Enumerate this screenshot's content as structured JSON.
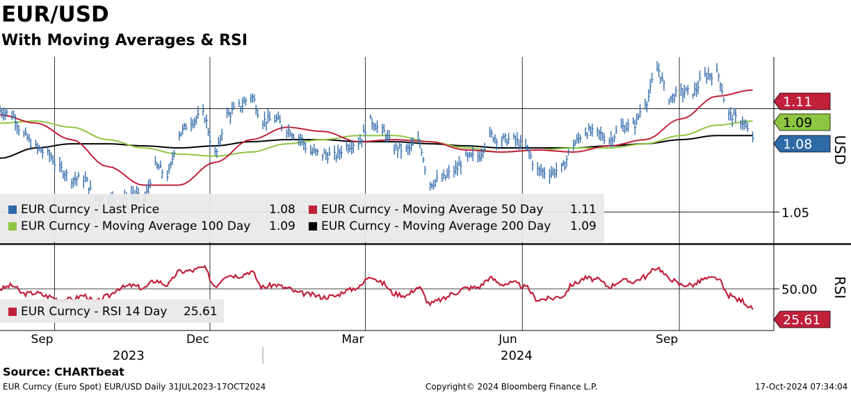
{
  "header": {
    "title": "EUR/USD",
    "subtitle": "With Moving Averages & RSI"
  },
  "legend_price": [
    {
      "label": "EUR Curncy - Last Price",
      "value": "1.08",
      "color": "#2f6aa8"
    },
    {
      "label": "EUR Curncy - Moving Average 50 Day",
      "value": "1.11",
      "color": "#c0203a"
    },
    {
      "label": "EUR Curncy - Moving Average 100 Day",
      "value": "1.09",
      "color": "#8ec641"
    },
    {
      "label": "EUR Curncy - Moving Average 200 Day",
      "value": "1.09",
      "color": "#000000"
    }
  ],
  "legend_rsi": {
    "label": "EUR Curncy - RSI 14 Day",
    "value": "25.61",
    "color": "#c0203a"
  },
  "right_axis": {
    "price_label": "USD",
    "rsi_label": "RSI",
    "price_ticks": [
      "1.05"
    ],
    "rsi_ticks": [
      "50.00"
    ],
    "tags": [
      {
        "text": "1.11",
        "color": "#c0203a",
        "text_color": "#ffffff"
      },
      {
        "text": "1.09",
        "color": "#8ec641",
        "text_color": "#000000"
      },
      {
        "text": "1.08",
        "color": "#2f6aa8",
        "text_color": "#ffffff"
      },
      {
        "text": "25.61",
        "color": "#c0203a",
        "text_color": "#ffffff"
      }
    ]
  },
  "x_axis": {
    "months": [
      "Sep",
      "Dec",
      "Mar",
      "Jun",
      "Sep"
    ],
    "years": [
      "2023",
      "2024"
    ]
  },
  "footer": {
    "source": "Source: CHARTbeat",
    "left": "EUR Curncy (Euro Spot) EUR/USD  Daily 31JUL2023-17OCT2024",
    "center": "Copyright© 2024 Bloomberg Finance L.P.",
    "right": "17-Oct-2024 07:34:04"
  },
  "chart_data": [
    {
      "type": "line",
      "title": "EUR/USD",
      "subtitle": "With Moving Averages & RSI",
      "ylabel": "USD",
      "ylim": [
        1.035,
        1.125
      ],
      "x_range": [
        "2023-07-31",
        "2024-10-17"
      ],
      "series": [
        {
          "name": "EUR Curncy - Last Price",
          "style": "bar-ohlc",
          "points": [
            [
              "2023-07-31",
              1.099
            ],
            [
              "2023-08-07",
              1.097
            ],
            [
              "2023-08-14",
              1.087
            ],
            [
              "2023-08-21",
              1.081
            ],
            [
              "2023-08-28",
              1.078
            ],
            [
              "2023-09-04",
              1.071
            ],
            [
              "2023-09-11",
              1.066
            ],
            [
              "2023-09-18",
              1.066
            ],
            [
              "2023-09-25",
              1.057
            ],
            [
              "2023-10-02",
              1.057
            ],
            [
              "2023-10-09",
              1.055
            ],
            [
              "2023-10-16",
              1.059
            ],
            [
              "2023-10-23",
              1.056
            ],
            [
              "2023-10-30",
              1.072
            ],
            [
              "2023-11-06",
              1.068
            ],
            [
              "2023-11-13",
              1.088
            ],
            [
              "2023-11-20",
              1.094
            ],
            [
              "2023-11-27",
              1.097
            ],
            [
              "2023-12-04",
              1.078
            ],
            [
              "2023-12-11",
              1.097
            ],
            [
              "2023-12-18",
              1.101
            ],
            [
              "2023-12-25",
              1.106
            ],
            [
              "2024-01-01",
              1.094
            ],
            [
              "2024-01-08",
              1.095
            ],
            [
              "2024-01-15",
              1.09
            ],
            [
              "2024-01-22",
              1.086
            ],
            [
              "2024-01-29",
              1.079
            ],
            [
              "2024-02-05",
              1.078
            ],
            [
              "2024-02-12",
              1.077
            ],
            [
              "2024-02-19",
              1.082
            ],
            [
              "2024-02-26",
              1.084
            ],
            [
              "2024-03-04",
              1.094
            ],
            [
              "2024-03-11",
              1.089
            ],
            [
              "2024-03-18",
              1.081
            ],
            [
              "2024-03-25",
              1.08
            ],
            [
              "2024-04-01",
              1.084
            ],
            [
              "2024-04-08",
              1.064
            ],
            [
              "2024-04-15",
              1.066
            ],
            [
              "2024-04-22",
              1.07
            ],
            [
              "2024-04-29",
              1.076
            ],
            [
              "2024-05-06",
              1.077
            ],
            [
              "2024-05-13",
              1.087
            ],
            [
              "2024-05-20",
              1.085
            ],
            [
              "2024-05-27",
              1.085
            ],
            [
              "2024-06-03",
              1.081
            ],
            [
              "2024-06-10",
              1.07
            ],
            [
              "2024-06-17",
              1.069
            ],
            [
              "2024-06-24",
              1.071
            ],
            [
              "2024-07-01",
              1.083
            ],
            [
              "2024-07-08",
              1.089
            ],
            [
              "2024-07-15",
              1.088
            ],
            [
              "2024-07-22",
              1.085
            ],
            [
              "2024-07-29",
              1.091
            ],
            [
              "2024-08-05",
              1.092
            ],
            [
              "2024-08-12",
              1.103
            ],
            [
              "2024-08-19",
              1.119
            ],
            [
              "2024-08-26",
              1.105
            ],
            [
              "2024-09-02",
              1.108
            ],
            [
              "2024-09-09",
              1.108
            ],
            [
              "2024-09-16",
              1.116
            ],
            [
              "2024-09-23",
              1.117
            ],
            [
              "2024-09-30",
              1.097
            ],
            [
              "2024-10-07",
              1.094
            ],
            [
              "2024-10-14",
              1.086
            ]
          ]
        },
        {
          "name": "EUR Curncy - Moving Average 50 Day",
          "points": [
            [
              "2023-07-31",
              1.097
            ],
            [
              "2023-08-21",
              1.093
            ],
            [
              "2023-09-11",
              1.085
            ],
            [
              "2023-10-02",
              1.072
            ],
            [
              "2023-10-23",
              1.063
            ],
            [
              "2023-11-13",
              1.063
            ],
            [
              "2023-12-04",
              1.074
            ],
            [
              "2023-12-25",
              1.085
            ],
            [
              "2024-01-15",
              1.091
            ],
            [
              "2024-02-05",
              1.089
            ],
            [
              "2024-02-26",
              1.084
            ],
            [
              "2024-03-18",
              1.085
            ],
            [
              "2024-04-08",
              1.084
            ],
            [
              "2024-04-29",
              1.08
            ],
            [
              "2024-05-20",
              1.079
            ],
            [
              "2024-06-10",
              1.08
            ],
            [
              "2024-07-01",
              1.079
            ],
            [
              "2024-07-22",
              1.082
            ],
            [
              "2024-08-12",
              1.085
            ],
            [
              "2024-09-02",
              1.095
            ],
            [
              "2024-09-23",
              1.106
            ],
            [
              "2024-10-14",
              1.109
            ]
          ]
        },
        {
          "name": "EUR Curncy - Moving Average 100 Day",
          "points": [
            [
              "2023-07-31",
              1.093
            ],
            [
              "2023-08-21",
              1.094
            ],
            [
              "2023-09-11",
              1.091
            ],
            [
              "2023-10-02",
              1.085
            ],
            [
              "2023-10-23",
              1.081
            ],
            [
              "2023-11-13",
              1.078
            ],
            [
              "2023-12-04",
              1.077
            ],
            [
              "2023-12-25",
              1.079
            ],
            [
              "2024-01-15",
              1.083
            ],
            [
              "2024-02-05",
              1.085
            ],
            [
              "2024-02-26",
              1.087
            ],
            [
              "2024-03-18",
              1.087
            ],
            [
              "2024-04-08",
              1.084
            ],
            [
              "2024-04-29",
              1.081
            ],
            [
              "2024-05-20",
              1.079
            ],
            [
              "2024-06-10",
              1.08
            ],
            [
              "2024-07-01",
              1.081
            ],
            [
              "2024-07-22",
              1.081
            ],
            [
              "2024-08-12",
              1.083
            ],
            [
              "2024-09-02",
              1.087
            ],
            [
              "2024-09-23",
              1.092
            ],
            [
              "2024-10-14",
              1.094
            ]
          ]
        },
        {
          "name": "EUR Curncy - Moving Average 200 Day",
          "points": [
            [
              "2023-07-31",
              1.076
            ],
            [
              "2023-08-21",
              1.081
            ],
            [
              "2023-09-11",
              1.083
            ],
            [
              "2023-10-02",
              1.083
            ],
            [
              "2023-10-23",
              1.082
            ],
            [
              "2023-11-13",
              1.081
            ],
            [
              "2023-12-04",
              1.082
            ],
            [
              "2023-12-25",
              1.084
            ],
            [
              "2024-01-15",
              1.085
            ],
            [
              "2024-02-05",
              1.085
            ],
            [
              "2024-02-26",
              1.084
            ],
            [
              "2024-03-18",
              1.084
            ],
            [
              "2024-04-08",
              1.083
            ],
            [
              "2024-04-29",
              1.082
            ],
            [
              "2024-05-20",
              1.081
            ],
            [
              "2024-06-10",
              1.081
            ],
            [
              "2024-07-01",
              1.081
            ],
            [
              "2024-07-22",
              1.082
            ],
            [
              "2024-08-12",
              1.083
            ],
            [
              "2024-09-02",
              1.085
            ],
            [
              "2024-09-23",
              1.087
            ],
            [
              "2024-10-14",
              1.087
            ]
          ]
        }
      ]
    },
    {
      "type": "line",
      "ylabel": "RSI",
      "ylim": [
        0,
        100
      ],
      "x_range": [
        "2023-07-31",
        "2024-10-17"
      ],
      "series": [
        {
          "name": "EUR Curncy - RSI 14 Day",
          "points": [
            [
              "2023-07-31",
              50
            ],
            [
              "2023-08-07",
              54
            ],
            [
              "2023-08-14",
              44
            ],
            [
              "2023-08-21",
              45
            ],
            [
              "2023-08-28",
              41
            ],
            [
              "2023-09-04",
              37
            ],
            [
              "2023-09-11",
              37
            ],
            [
              "2023-09-18",
              42
            ],
            [
              "2023-09-25",
              34
            ],
            [
              "2023-10-02",
              41
            ],
            [
              "2023-10-09",
              51
            ],
            [
              "2023-10-16",
              54
            ],
            [
              "2023-10-23",
              51
            ],
            [
              "2023-10-30",
              60
            ],
            [
              "2023-11-06",
              55
            ],
            [
              "2023-11-13",
              71
            ],
            [
              "2023-11-20",
              72
            ],
            [
              "2023-11-27",
              76
            ],
            [
              "2023-12-04",
              54
            ],
            [
              "2023-12-11",
              67
            ],
            [
              "2023-12-18",
              66
            ],
            [
              "2023-12-25",
              71
            ],
            [
              "2024-01-01",
              52
            ],
            [
              "2024-01-08",
              55
            ],
            [
              "2024-01-15",
              51
            ],
            [
              "2024-01-22",
              45
            ],
            [
              "2024-01-29",
              43
            ],
            [
              "2024-02-05",
              40
            ],
            [
              "2024-02-12",
              41
            ],
            [
              "2024-02-19",
              48
            ],
            [
              "2024-02-26",
              52
            ],
            [
              "2024-03-04",
              66
            ],
            [
              "2024-03-11",
              57
            ],
            [
              "2024-03-18",
              44
            ],
            [
              "2024-03-25",
              42
            ],
            [
              "2024-04-01",
              52
            ],
            [
              "2024-04-08",
              32
            ],
            [
              "2024-04-15",
              37
            ],
            [
              "2024-04-22",
              45
            ],
            [
              "2024-04-29",
              51
            ],
            [
              "2024-05-06",
              52
            ],
            [
              "2024-05-13",
              63
            ],
            [
              "2024-05-20",
              56
            ],
            [
              "2024-05-27",
              57
            ],
            [
              "2024-06-03",
              52
            ],
            [
              "2024-06-10",
              37
            ],
            [
              "2024-06-17",
              38
            ],
            [
              "2024-06-24",
              41
            ],
            [
              "2024-07-01",
              56
            ],
            [
              "2024-07-08",
              63
            ],
            [
              "2024-07-15",
              61
            ],
            [
              "2024-07-22",
              53
            ],
            [
              "2024-07-29",
              60
            ],
            [
              "2024-08-05",
              59
            ],
            [
              "2024-08-12",
              65
            ],
            [
              "2024-08-19",
              76
            ],
            [
              "2024-08-26",
              63
            ],
            [
              "2024-09-02",
              55
            ],
            [
              "2024-09-09",
              55
            ],
            [
              "2024-09-16",
              62
            ],
            [
              "2024-09-23",
              63
            ],
            [
              "2024-09-30",
              42
            ],
            [
              "2024-10-07",
              36
            ],
            [
              "2024-10-14",
              26
            ]
          ]
        }
      ]
    }
  ]
}
